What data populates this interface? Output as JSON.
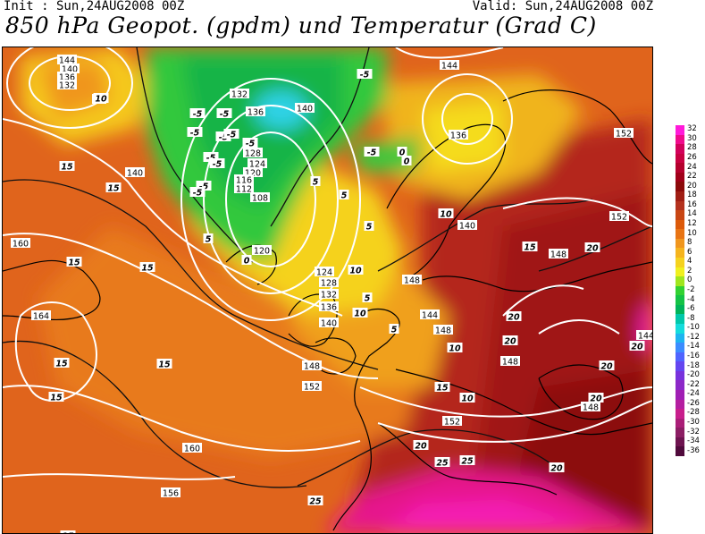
{
  "header": {
    "init": "Init : Sun,24AUG2008 00Z",
    "valid": "Valid: Sun,24AUG2008 00Z",
    "title": "850 hPa Geopot. (gpdm) und Temperatur (Grad C)"
  },
  "colorbar": {
    "levels": [
      "32",
      "30",
      "28",
      "26",
      "24",
      "22",
      "20",
      "18",
      "16",
      "14",
      "12",
      "10",
      "8",
      "6",
      "4",
      "2",
      "0",
      "-2",
      "-4",
      "-6",
      "-8",
      "-10",
      "-12",
      "-14",
      "-16",
      "-18",
      "-20",
      "-22",
      "-24",
      "-26",
      "-28",
      "-30",
      "-32",
      "-34",
      "-36"
    ],
    "colors": [
      "#ff1ad9",
      "#f00a8c",
      "#d2005a",
      "#c80041",
      "#b4002d",
      "#a00019",
      "#8c0a0a",
      "#a01e14",
      "#b4321e",
      "#c84614",
      "#dc5a0a",
      "#e87414",
      "#f0961e",
      "#f5b41e",
      "#f5d21e",
      "#f0f01e",
      "#a0e61e",
      "#32d232",
      "#14c346",
      "#00b45a",
      "#00c8aa",
      "#14dcdc",
      "#1eb4f0",
      "#3c8cff",
      "#5064ff",
      "#6446f0",
      "#7832dc",
      "#8c28c8",
      "#a01eb4",
      "#b41ea0",
      "#c81e8c",
      "#aa1e78",
      "#8c1e64",
      "#6e1450",
      "#500a3c"
    ]
  },
  "geopotential_labels": [
    "144",
    "140",
    "136",
    "132",
    "10",
    "132",
    "136",
    "128",
    "124",
    "120",
    "116",
    "112",
    "108",
    "140",
    "136",
    "144",
    "140",
    "152",
    "148",
    "160",
    "164",
    "160",
    "156",
    "148",
    "152",
    "152",
    "148",
    "140",
    "148",
    "144",
    "120",
    "124",
    "128",
    "132",
    "136",
    "140",
    "148",
    "152",
    "148",
    "144"
  ],
  "temperature_labels": [
    "-5",
    "-5",
    "-5",
    "-5",
    "-5",
    "-5",
    "-5",
    "-5",
    "-5",
    "-5",
    "-5",
    "-5",
    "0",
    "0",
    "0",
    "5",
    "5",
    "5",
    "5",
    "5",
    "5",
    "10",
    "10",
    "10",
    "10",
    "10",
    "10",
    "15",
    "15",
    "15",
    "15",
    "15",
    "15",
    "15",
    "15",
    "15",
    "15",
    "20",
    "20",
    "20",
    "20",
    "20",
    "20",
    "20",
    "25",
    "25",
    "25",
    "20"
  ]
}
